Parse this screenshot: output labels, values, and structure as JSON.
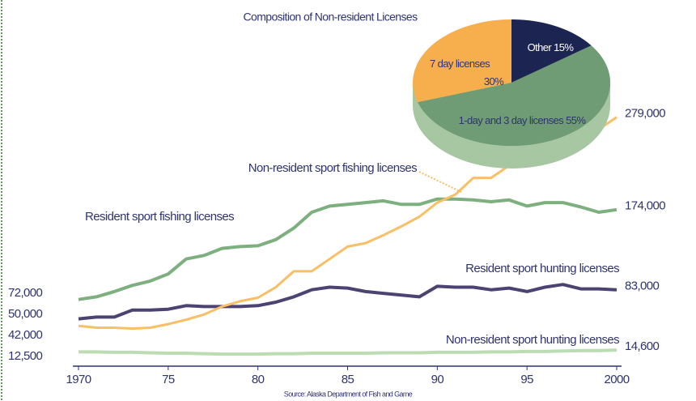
{
  "chart_data": [
    {
      "type": "pie",
      "title": "Composition of Non-resident Licenses",
      "categories": [
        "Other",
        "1-day and 3 day licenses",
        "7 day licenses"
      ],
      "values": [
        15,
        55,
        30
      ],
      "value_labels": [
        "15%",
        "55%",
        "30%"
      ],
      "colors": [
        "#1c2552",
        "#6f9c74",
        "#f7ae4c"
      ]
    },
    {
      "type": "line",
      "x": [
        1970,
        1971,
        1972,
        1973,
        1974,
        1975,
        1976,
        1977,
        1978,
        1979,
        1980,
        1981,
        1982,
        1983,
        1984,
        1985,
        1986,
        1987,
        1988,
        1989,
        1990,
        1991,
        1992,
        1993,
        1994,
        1995,
        1996,
        1997,
        1998,
        1999,
        2000
      ],
      "xlim": [
        1970,
        2000
      ],
      "xticks": [
        1970,
        {
          "value": 1975,
          "label": "75"
        },
        {
          "value": 1980,
          "label": "80"
        },
        {
          "value": 1985,
          "label": "85"
        },
        {
          "value": 1990,
          "label": "90"
        },
        {
          "value": 1995,
          "label": "95"
        },
        2000
      ],
      "ylim": [
        0,
        400000
      ],
      "series": [
        {
          "name": "Resident sport fishing licenses",
          "color": "#7db07e",
          "start_label": "72,000",
          "end_label": "174,000",
          "values": [
            72000,
            75000,
            81000,
            88000,
            93000,
            101000,
            118000,
            122000,
            130000,
            132000,
            133000,
            140000,
            153000,
            171000,
            178000,
            180000,
            182000,
            184000,
            180000,
            180000,
            186000,
            186000,
            185000,
            183000,
            185000,
            178000,
            182000,
            182000,
            177000,
            171000,
            174000
          ]
        },
        {
          "name": "Resident sport hunting licenses",
          "color": "#4d4372",
          "start_label": "50,000",
          "end_label": "83,000",
          "values": [
            50000,
            52000,
            52000,
            60000,
            60000,
            61000,
            65000,
            64000,
            64000,
            64000,
            65000,
            69000,
            75000,
            83000,
            86000,
            85000,
            81000,
            79000,
            77000,
            75000,
            87000,
            86000,
            86000,
            83000,
            85000,
            81000,
            86000,
            89000,
            84000,
            84000,
            83000
          ]
        },
        {
          "name": "Non-resident sport fishing licenses",
          "color": "#f8bf66",
          "start_label": "42,000",
          "end_label": "279,000",
          "values": [
            42000,
            40000,
            40000,
            39000,
            40000,
            44000,
            49000,
            55000,
            64000,
            70000,
            74000,
            86000,
            104000,
            104000,
            118000,
            132000,
            136000,
            145000,
            155000,
            166000,
            182000,
            191000,
            210000,
            210000,
            224000,
            237000,
            242000,
            248000,
            256000,
            265000,
            279000
          ]
        },
        {
          "name": "Non-resident sport hunting licenses",
          "color": "#bcdcb4",
          "start_label": "12,500",
          "end_label": "14,600",
          "values": [
            12500,
            12500,
            12000,
            12000,
            11500,
            11000,
            11000,
            10500,
            10000,
            10000,
            10000,
            10500,
            10500,
            11000,
            11000,
            11000,
            11000,
            11500,
            11500,
            11500,
            12000,
            12000,
            12000,
            12500,
            12500,
            13000,
            13000,
            13500,
            14000,
            14000,
            14600
          ]
        }
      ],
      "source": "Source: Alaska Department of Fish and Game"
    }
  ]
}
